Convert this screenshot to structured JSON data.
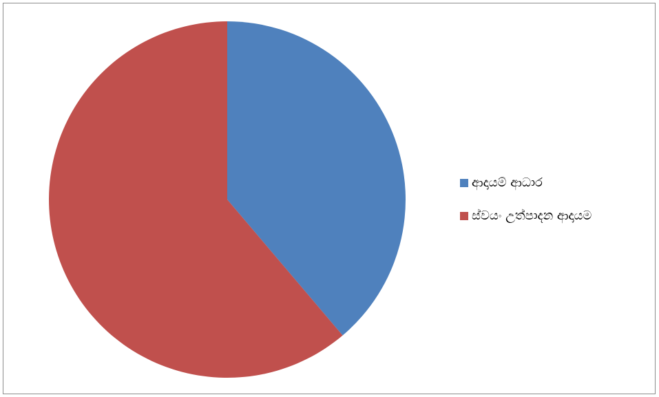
{
  "chart_data": {
    "type": "pie",
    "title": "",
    "categories": [
      "ආදායම් ආධාර",
      "ස්වයං උත්පාදන ආදායම"
    ],
    "values": [
      38.8,
      61.2
    ],
    "colors": [
      "#4F81BD",
      "#C0504D"
    ],
    "legend_position": "right",
    "start_angle": "12-o'clock",
    "direction": "clockwise"
  },
  "legend": {
    "items": [
      {
        "label": "ආදායම් ආධාර",
        "color": "#4F81BD"
      },
      {
        "label": "ස්වයං උත්පාදන ආදායම",
        "color": "#C0504D"
      }
    ]
  }
}
